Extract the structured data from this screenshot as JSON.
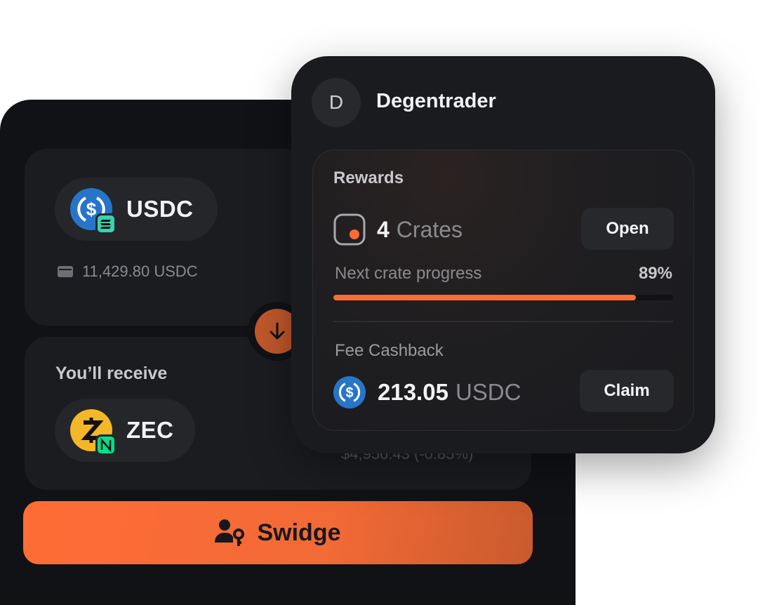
{
  "swap": {
    "from": {
      "token": "USDC",
      "balance": "11,429.80 USDC"
    },
    "to": {
      "label": "You’ll receive",
      "token": "ZEC",
      "value": "$4,956.43 (-0.85%)"
    },
    "action": "Swidge"
  },
  "profile": {
    "initial": "D",
    "name": "Degentrader",
    "rewards": {
      "title": "Rewards",
      "crates_count": "4",
      "crates_label": "Crates",
      "open_label": "Open",
      "progress_label": "Next crate progress",
      "progress_text": "89%",
      "progress_value": 89,
      "cashback_label": "Fee Cashback",
      "cashback_amount": "213.05",
      "cashback_unit": "USDC",
      "claim_label": "Claim"
    }
  },
  "colors": {
    "accent": "#ff6c36",
    "usdc": "#2775ca",
    "solana": "#38d3b0",
    "zec": "#f4b728",
    "near": "#00e08a"
  }
}
